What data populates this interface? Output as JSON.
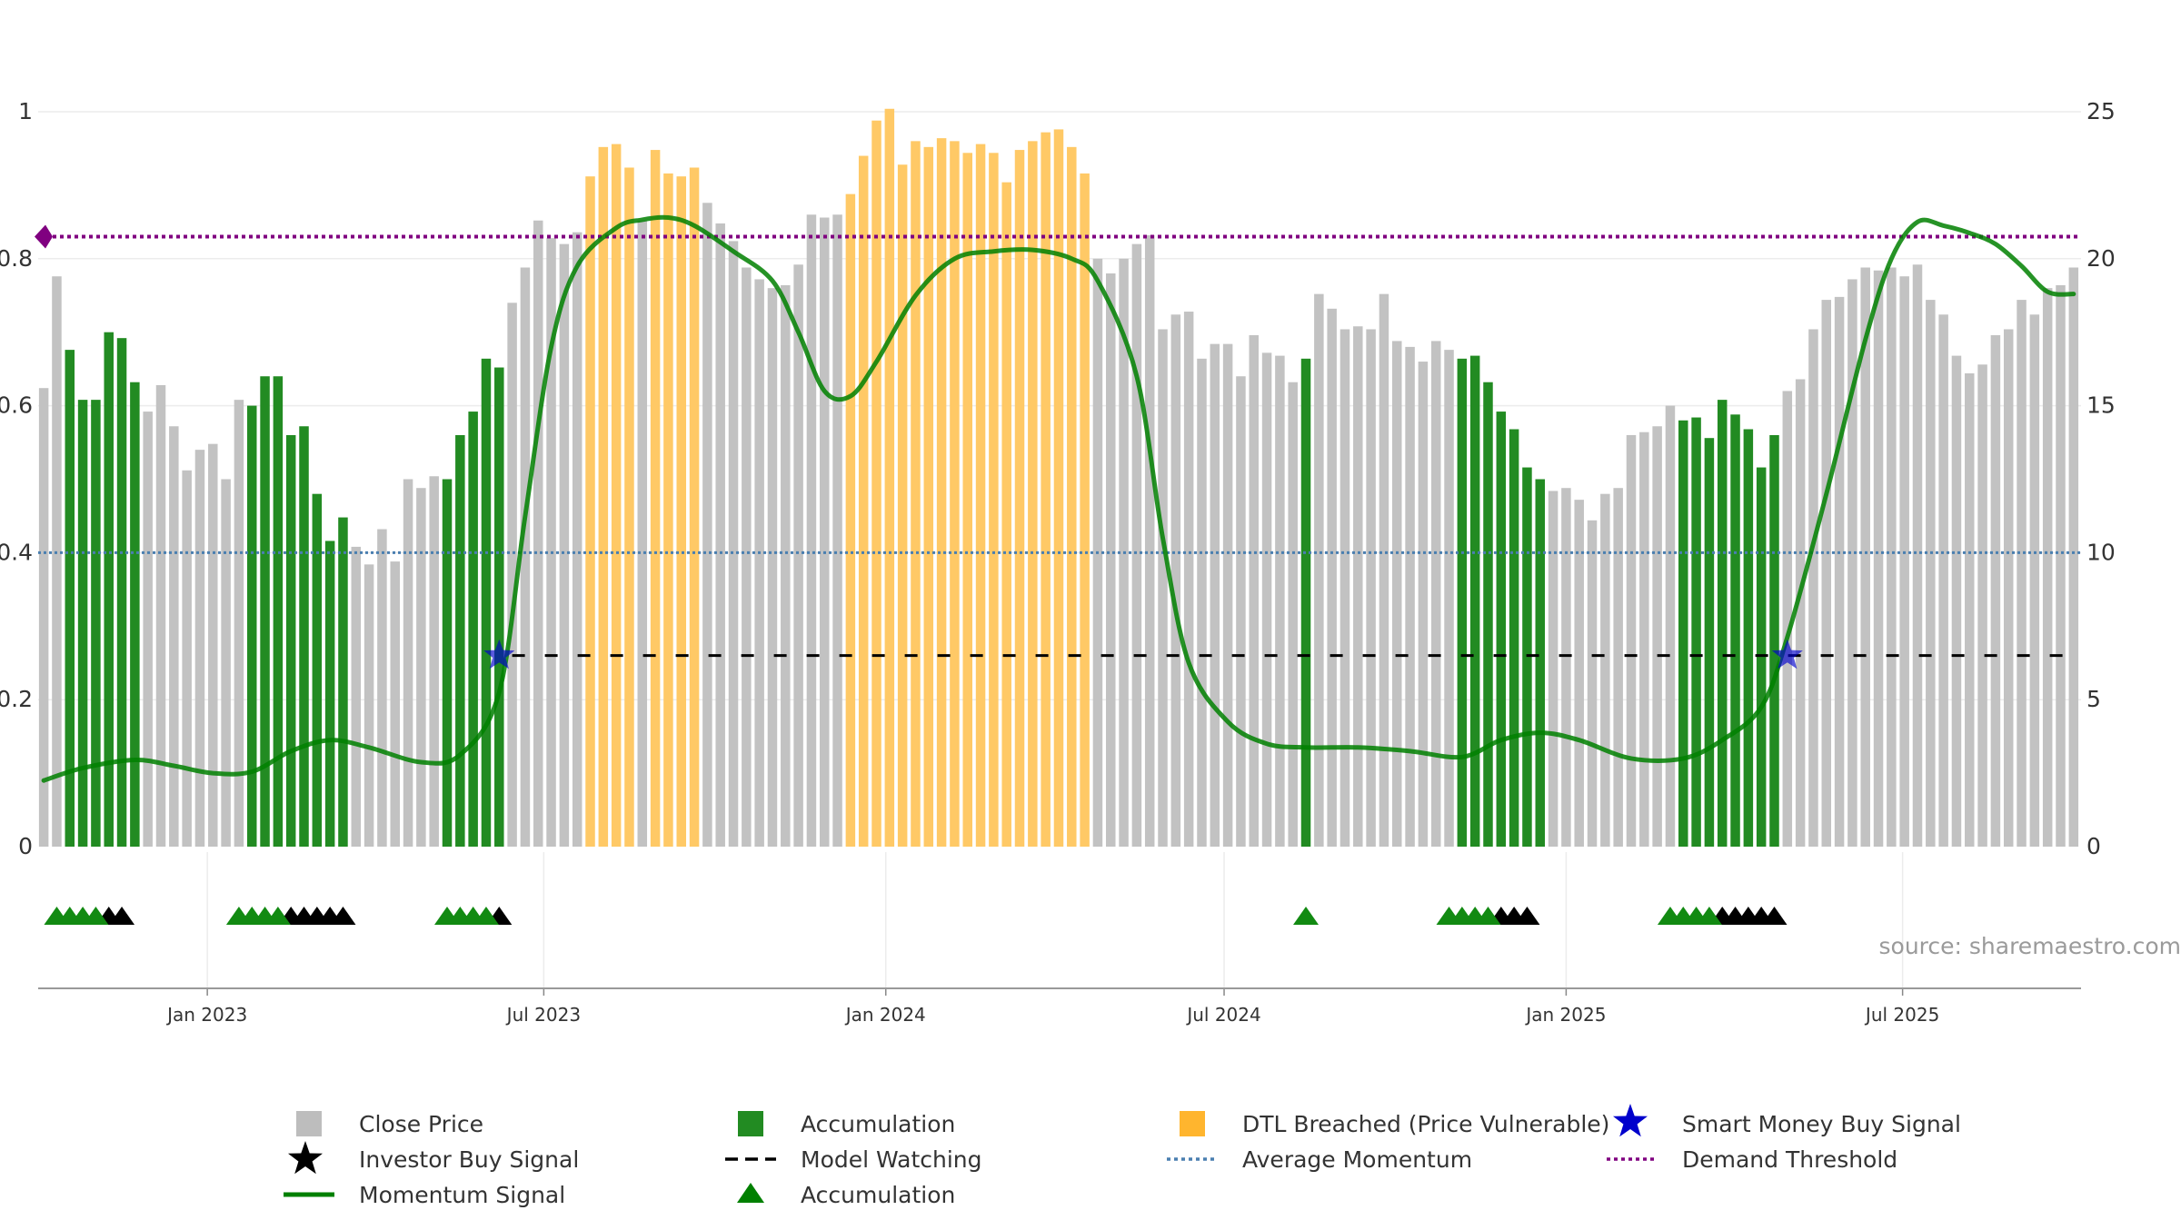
{
  "chart_data": {
    "type": "bar",
    "source_text": "source: sharemaestro.com",
    "x_ticks": [
      "Jan 2023",
      "Jul 2023",
      "Jan 2024",
      "Jul 2024",
      "Jan 2025",
      "Jul 2025"
    ],
    "y_left": {
      "ylim": [
        0,
        1
      ],
      "ticks": [
        "0",
        "0.2",
        "0.4",
        "0.6",
        "0.8",
        "1"
      ]
    },
    "y_right": {
      "ylim": [
        0,
        25
      ],
      "ticks": [
        "0",
        "5",
        "10",
        "15",
        "20",
        "25"
      ]
    },
    "grid": true,
    "colors": {
      "close_price": "#c2c2c2",
      "accumulation": "#228b22",
      "dtl_breached": "#ffc966",
      "momentum": "#008000",
      "average_momentum": "#4a7fb0",
      "demand_threshold": "#800080",
      "model_watching": "#000000",
      "smart_money": "#0000cc",
      "investor_buy": "#000000"
    },
    "bars": [
      {
        "w": "2022-10-05",
        "v": 15.6,
        "c": "close"
      },
      {
        "w": "2022-10-12",
        "v": 19.4,
        "c": "close"
      },
      {
        "w": "2022-10-19",
        "v": 16.9,
        "c": "accum"
      },
      {
        "w": "2022-10-26",
        "v": 15.2,
        "c": "accum"
      },
      {
        "w": "2022-11-02",
        "v": 15.2,
        "c": "accum"
      },
      {
        "w": "2022-11-09",
        "v": 17.5,
        "c": "accum"
      },
      {
        "w": "2022-11-16",
        "v": 17.3,
        "c": "accum"
      },
      {
        "w": "2022-11-23",
        "v": 15.8,
        "c": "accum"
      },
      {
        "w": "2022-11-30",
        "v": 14.8,
        "c": "close"
      },
      {
        "w": "2022-12-07",
        "v": 15.7,
        "c": "close"
      },
      {
        "w": "2022-12-14",
        "v": 14.3,
        "c": "close"
      },
      {
        "w": "2022-12-21",
        "v": 12.8,
        "c": "close"
      },
      {
        "w": "2022-12-28",
        "v": 13.5,
        "c": "close"
      },
      {
        "w": "2023-01-04",
        "v": 13.7,
        "c": "close"
      },
      {
        "w": "2023-01-11",
        "v": 12.5,
        "c": "close"
      },
      {
        "w": "2023-01-18",
        "v": 15.2,
        "c": "close"
      },
      {
        "w": "2023-01-25",
        "v": 15.0,
        "c": "accum"
      },
      {
        "w": "2023-02-01",
        "v": 16.0,
        "c": "accum"
      },
      {
        "w": "2023-02-08",
        "v": 16.0,
        "c": "accum"
      },
      {
        "w": "2023-02-15",
        "v": 14.0,
        "c": "accum"
      },
      {
        "w": "2023-02-22",
        "v": 14.3,
        "c": "accum"
      },
      {
        "w": "2023-03-01",
        "v": 12.0,
        "c": "accum"
      },
      {
        "w": "2023-03-08",
        "v": 10.4,
        "c": "accum"
      },
      {
        "w": "2023-03-15",
        "v": 11.2,
        "c": "accum"
      },
      {
        "w": "2023-03-22",
        "v": 10.2,
        "c": "close"
      },
      {
        "w": "2023-03-29",
        "v": 9.6,
        "c": "close"
      },
      {
        "w": "2023-04-05",
        "v": 10.8,
        "c": "close"
      },
      {
        "w": "2023-04-12",
        "v": 9.7,
        "c": "close"
      },
      {
        "w": "2023-04-19",
        "v": 12.5,
        "c": "close"
      },
      {
        "w": "2023-04-26",
        "v": 12.2,
        "c": "close"
      },
      {
        "w": "2023-05-03",
        "v": 12.6,
        "c": "close"
      },
      {
        "w": "2023-05-10",
        "v": 12.5,
        "c": "accum"
      },
      {
        "w": "2023-05-17",
        "v": 14.0,
        "c": "accum"
      },
      {
        "w": "2023-05-24",
        "v": 14.8,
        "c": "accum"
      },
      {
        "w": "2023-05-31",
        "v": 16.6,
        "c": "accum"
      },
      {
        "w": "2023-06-07",
        "v": 16.3,
        "c": "accum"
      },
      {
        "w": "2023-06-14",
        "v": 18.5,
        "c": "close"
      },
      {
        "w": "2023-06-21",
        "v": 19.7,
        "c": "close"
      },
      {
        "w": "2023-06-28",
        "v": 21.3,
        "c": "close"
      },
      {
        "w": "2023-07-05",
        "v": 20.7,
        "c": "close"
      },
      {
        "w": "2023-07-12",
        "v": 20.5,
        "c": "close"
      },
      {
        "w": "2023-07-19",
        "v": 20.9,
        "c": "close"
      },
      {
        "w": "2023-07-26",
        "v": 22.8,
        "c": "dtl"
      },
      {
        "w": "2023-08-02",
        "v": 23.8,
        "c": "dtl"
      },
      {
        "w": "2023-08-09",
        "v": 23.9,
        "c": "dtl"
      },
      {
        "w": "2023-08-16",
        "v": 23.1,
        "c": "dtl"
      },
      {
        "w": "2023-08-23",
        "v": 21.3,
        "c": "close"
      },
      {
        "w": "2023-08-30",
        "v": 23.7,
        "c": "dtl"
      },
      {
        "w": "2023-09-06",
        "v": 22.9,
        "c": "dtl"
      },
      {
        "w": "2023-09-13",
        "v": 22.8,
        "c": "dtl"
      },
      {
        "w": "2023-09-20",
        "v": 23.1,
        "c": "dtl"
      },
      {
        "w": "2023-09-27",
        "v": 21.9,
        "c": "close"
      },
      {
        "w": "2023-10-04",
        "v": 21.2,
        "c": "close"
      },
      {
        "w": "2023-10-11",
        "v": 20.6,
        "c": "close"
      },
      {
        "w": "2023-10-18",
        "v": 19.7,
        "c": "close"
      },
      {
        "w": "2023-10-25",
        "v": 19.3,
        "c": "close"
      },
      {
        "w": "2023-11-01",
        "v": 19.0,
        "c": "close"
      },
      {
        "w": "2023-11-08",
        "v": 19.1,
        "c": "close"
      },
      {
        "w": "2023-11-15",
        "v": 19.8,
        "c": "close"
      },
      {
        "w": "2023-11-22",
        "v": 21.5,
        "c": "close"
      },
      {
        "w": "2023-11-29",
        "v": 21.4,
        "c": "close"
      },
      {
        "w": "2023-12-06",
        "v": 21.5,
        "c": "close"
      },
      {
        "w": "2023-12-13",
        "v": 22.2,
        "c": "dtl"
      },
      {
        "w": "2023-12-20",
        "v": 23.5,
        "c": "dtl"
      },
      {
        "w": "2023-12-27",
        "v": 24.7,
        "c": "dtl"
      },
      {
        "w": "2024-01-03",
        "v": 25.1,
        "c": "dtl"
      },
      {
        "w": "2024-01-10",
        "v": 23.2,
        "c": "dtl"
      },
      {
        "w": "2024-01-17",
        "v": 24.0,
        "c": "dtl"
      },
      {
        "w": "2024-01-24",
        "v": 23.8,
        "c": "dtl"
      },
      {
        "w": "2024-01-31",
        "v": 24.1,
        "c": "dtl"
      },
      {
        "w": "2024-02-07",
        "v": 24.0,
        "c": "dtl"
      },
      {
        "w": "2024-02-14",
        "v": 23.6,
        "c": "dtl"
      },
      {
        "w": "2024-02-21",
        "v": 23.9,
        "c": "dtl"
      },
      {
        "w": "2024-02-28",
        "v": 23.6,
        "c": "dtl"
      },
      {
        "w": "2024-03-06",
        "v": 22.6,
        "c": "dtl"
      },
      {
        "w": "2024-03-13",
        "v": 23.7,
        "c": "dtl"
      },
      {
        "w": "2024-03-20",
        "v": 24.0,
        "c": "dtl"
      },
      {
        "w": "2024-03-27",
        "v": 24.3,
        "c": "dtl"
      },
      {
        "w": "2024-04-03",
        "v": 24.4,
        "c": "dtl"
      },
      {
        "w": "2024-04-10",
        "v": 23.8,
        "c": "dtl"
      },
      {
        "w": "2024-04-17",
        "v": 22.9,
        "c": "dtl"
      },
      {
        "w": "2024-04-24",
        "v": 20.0,
        "c": "close"
      },
      {
        "w": "2024-05-01",
        "v": 19.5,
        "c": "close"
      },
      {
        "w": "2024-05-08",
        "v": 20.0,
        "c": "close"
      },
      {
        "w": "2024-05-15",
        "v": 20.5,
        "c": "close"
      },
      {
        "w": "2024-05-22",
        "v": 20.8,
        "c": "close"
      },
      {
        "w": "2024-05-29",
        "v": 17.6,
        "c": "close"
      },
      {
        "w": "2024-06-05",
        "v": 18.1,
        "c": "close"
      },
      {
        "w": "2024-06-12",
        "v": 18.2,
        "c": "close"
      },
      {
        "w": "2024-06-19",
        "v": 16.6,
        "c": "close"
      },
      {
        "w": "2024-06-26",
        "v": 17.1,
        "c": "close"
      },
      {
        "w": "2024-07-03",
        "v": 17.1,
        "c": "close"
      },
      {
        "w": "2024-07-10",
        "v": 16.0,
        "c": "close"
      },
      {
        "w": "2024-07-17",
        "v": 17.4,
        "c": "close"
      },
      {
        "w": "2024-07-24",
        "v": 16.8,
        "c": "close"
      },
      {
        "w": "2024-07-31",
        "v": 16.7,
        "c": "close"
      },
      {
        "w": "2024-08-07",
        "v": 15.8,
        "c": "close"
      },
      {
        "w": "2024-08-14",
        "v": 16.6,
        "c": "accum"
      },
      {
        "w": "2024-08-21",
        "v": 18.8,
        "c": "close"
      },
      {
        "w": "2024-08-28",
        "v": 18.3,
        "c": "close"
      },
      {
        "w": "2024-09-04",
        "v": 17.6,
        "c": "close"
      },
      {
        "w": "2024-09-11",
        "v": 17.7,
        "c": "close"
      },
      {
        "w": "2024-09-18",
        "v": 17.6,
        "c": "close"
      },
      {
        "w": "2024-09-25",
        "v": 18.8,
        "c": "close"
      },
      {
        "w": "2024-10-02",
        "v": 17.2,
        "c": "close"
      },
      {
        "w": "2024-10-09",
        "v": 17.0,
        "c": "close"
      },
      {
        "w": "2024-10-16",
        "v": 16.5,
        "c": "close"
      },
      {
        "w": "2024-10-23",
        "v": 17.2,
        "c": "close"
      },
      {
        "w": "2024-10-30",
        "v": 16.9,
        "c": "close"
      },
      {
        "w": "2024-11-06",
        "v": 16.6,
        "c": "accum"
      },
      {
        "w": "2024-11-13",
        "v": 16.7,
        "c": "accum"
      },
      {
        "w": "2024-11-20",
        "v": 15.8,
        "c": "accum"
      },
      {
        "w": "2024-11-27",
        "v": 14.8,
        "c": "accum"
      },
      {
        "w": "2024-12-04",
        "v": 14.2,
        "c": "accum"
      },
      {
        "w": "2024-12-11",
        "v": 12.9,
        "c": "accum"
      },
      {
        "w": "2024-12-18",
        "v": 12.5,
        "c": "accum"
      },
      {
        "w": "2024-12-25",
        "v": 12.1,
        "c": "close"
      },
      {
        "w": "2025-01-01",
        "v": 12.2,
        "c": "close"
      },
      {
        "w": "2025-01-08",
        "v": 11.8,
        "c": "close"
      },
      {
        "w": "2025-01-15",
        "v": 11.1,
        "c": "close"
      },
      {
        "w": "2025-01-22",
        "v": 12.0,
        "c": "close"
      },
      {
        "w": "2025-01-29",
        "v": 12.2,
        "c": "close"
      },
      {
        "w": "2025-02-05",
        "v": 14.0,
        "c": "close"
      },
      {
        "w": "2025-02-12",
        "v": 14.1,
        "c": "close"
      },
      {
        "w": "2025-02-19",
        "v": 14.3,
        "c": "close"
      },
      {
        "w": "2025-02-26",
        "v": 15.0,
        "c": "close"
      },
      {
        "w": "2025-03-05",
        "v": 14.5,
        "c": "accum"
      },
      {
        "w": "2025-03-12",
        "v": 14.6,
        "c": "accum"
      },
      {
        "w": "2025-03-19",
        "v": 13.9,
        "c": "accum"
      },
      {
        "w": "2025-03-26",
        "v": 15.2,
        "c": "accum"
      },
      {
        "w": "2025-04-02",
        "v": 14.7,
        "c": "accum"
      },
      {
        "w": "2025-04-09",
        "v": 14.2,
        "c": "accum"
      },
      {
        "w": "2025-04-16",
        "v": 12.9,
        "c": "accum"
      },
      {
        "w": "2025-04-23",
        "v": 14.0,
        "c": "accum"
      },
      {
        "w": "2025-04-30",
        "v": 15.5,
        "c": "close"
      },
      {
        "w": "2025-05-07",
        "v": 15.9,
        "c": "close"
      },
      {
        "w": "2025-05-14",
        "v": 17.6,
        "c": "close"
      },
      {
        "w": "2025-05-21",
        "v": 18.6,
        "c": "close"
      },
      {
        "w": "2025-05-28",
        "v": 18.7,
        "c": "close"
      },
      {
        "w": "2025-06-04",
        "v": 19.3,
        "c": "close"
      },
      {
        "w": "2025-06-11",
        "v": 19.7,
        "c": "close"
      },
      {
        "w": "2025-06-18",
        "v": 19.6,
        "c": "close"
      },
      {
        "w": "2025-06-25",
        "v": 19.7,
        "c": "close"
      },
      {
        "w": "2025-07-02",
        "v": 19.4,
        "c": "close"
      },
      {
        "w": "2025-07-09",
        "v": 19.8,
        "c": "close"
      },
      {
        "w": "2025-07-16",
        "v": 18.6,
        "c": "close"
      },
      {
        "w": "2025-07-23",
        "v": 18.1,
        "c": "close"
      },
      {
        "w": "2025-07-30",
        "v": 16.7,
        "c": "close"
      },
      {
        "w": "2025-08-06",
        "v": 16.1,
        "c": "close"
      },
      {
        "w": "2025-08-13",
        "v": 16.4,
        "c": "close"
      },
      {
        "w": "2025-08-20",
        "v": 17.4,
        "c": "close"
      },
      {
        "w": "2025-08-27",
        "v": 17.6,
        "c": "close"
      },
      {
        "w": "2025-09-03",
        "v": 18.6,
        "c": "close"
      },
      {
        "w": "2025-09-10",
        "v": 18.1,
        "c": "close"
      },
      {
        "w": "2025-09-17",
        "v": 19.0,
        "c": "close"
      },
      {
        "w": "2025-09-24",
        "v": 19.1,
        "c": "close"
      },
      {
        "w": "2025-10-01",
        "v": 19.7,
        "c": "close"
      }
    ],
    "momentum": [
      [
        "2022-10-05",
        0.09
      ],
      [
        "2022-10-26",
        0.107
      ],
      [
        "2022-11-23",
        0.118
      ],
      [
        "2022-12-14",
        0.11
      ],
      [
        "2023-01-04",
        0.1
      ],
      [
        "2023-01-25",
        0.102
      ],
      [
        "2023-02-15",
        0.13
      ],
      [
        "2023-03-08",
        0.145
      ],
      [
        "2023-03-29",
        0.135
      ],
      [
        "2023-04-26",
        0.115
      ],
      [
        "2023-05-17",
        0.125
      ],
      [
        "2023-06-07",
        0.21
      ],
      [
        "2023-06-21",
        0.45
      ],
      [
        "2023-07-05",
        0.68
      ],
      [
        "2023-07-19",
        0.79
      ],
      [
        "2023-08-09",
        0.842
      ],
      [
        "2023-08-23",
        0.853
      ],
      [
        "2023-09-06",
        0.856
      ],
      [
        "2023-09-20",
        0.845
      ],
      [
        "2023-10-11",
        0.81
      ],
      [
        "2023-11-01",
        0.77
      ],
      [
        "2023-11-15",
        0.7
      ],
      [
        "2023-11-29",
        0.62
      ],
      [
        "2023-12-13",
        0.613
      ],
      [
        "2023-12-27",
        0.66
      ],
      [
        "2024-01-17",
        0.75
      ],
      [
        "2024-02-07",
        0.8
      ],
      [
        "2024-02-28",
        0.81
      ],
      [
        "2024-03-20",
        0.812
      ],
      [
        "2024-04-10",
        0.8
      ],
      [
        "2024-04-24",
        0.77
      ],
      [
        "2024-05-15",
        0.64
      ],
      [
        "2024-05-29",
        0.42
      ],
      [
        "2024-06-12",
        0.25
      ],
      [
        "2024-07-03",
        0.17
      ],
      [
        "2024-07-24",
        0.14
      ],
      [
        "2024-08-14",
        0.135
      ],
      [
        "2024-09-11",
        0.135
      ],
      [
        "2024-10-09",
        0.13
      ],
      [
        "2024-11-06",
        0.122
      ],
      [
        "2024-11-27",
        0.145
      ],
      [
        "2024-12-18",
        0.155
      ],
      [
        "2025-01-08",
        0.145
      ],
      [
        "2025-02-05",
        0.12
      ],
      [
        "2025-03-05",
        0.12
      ],
      [
        "2025-03-26",
        0.145
      ],
      [
        "2025-04-16",
        0.19
      ],
      [
        "2025-04-30",
        0.285
      ],
      [
        "2025-05-21",
        0.48
      ],
      [
        "2025-06-11",
        0.69
      ],
      [
        "2025-06-25",
        0.8
      ],
      [
        "2025-07-09",
        0.85
      ],
      [
        "2025-07-23",
        0.845
      ],
      [
        "2025-08-06",
        0.835
      ],
      [
        "2025-08-20",
        0.82
      ],
      [
        "2025-09-03",
        0.79
      ],
      [
        "2025-09-17",
        0.755
      ],
      [
        "2025-10-01",
        0.752
      ]
    ],
    "average_momentum": 0.4,
    "demand_threshold": 0.83,
    "model_watching": {
      "level": 0.26,
      "from": "2023-06-14",
      "to": "2025-10-01"
    },
    "smart_money_signals": [
      {
        "date": "2023-06-07",
        "value": 0.26
      },
      {
        "date": "2025-04-30",
        "value": 0.26
      }
    ],
    "accumulation_markers": [
      "2022-10-12",
      "2022-10-19",
      "2022-10-26",
      "2022-11-02",
      "2023-01-18",
      "2023-01-25",
      "2023-02-01",
      "2023-02-08",
      "2023-05-10",
      "2023-05-17",
      "2023-05-24",
      "2023-05-31",
      "2024-08-14",
      "2024-10-30",
      "2024-11-06",
      "2024-11-13",
      "2024-11-20",
      "2025-02-26",
      "2025-03-05",
      "2025-03-12",
      "2025-03-19"
    ],
    "investor_buy_markers": [
      "2022-11-09",
      "2022-11-16",
      "2023-02-15",
      "2023-02-22",
      "2023-03-01",
      "2023-03-08",
      "2023-03-15",
      "2023-06-07",
      "2024-11-27",
      "2024-12-04",
      "2024-12-11",
      "2025-03-26",
      "2025-04-02",
      "2025-04-09",
      "2025-04-16",
      "2025-04-23"
    ],
    "legend": [
      {
        "label": "Close Price",
        "symbol": "square",
        "color": "#bdbdbd"
      },
      {
        "label": "Accumulation",
        "symbol": "square",
        "color": "#228b22"
      },
      {
        "label": "DTL Breached (Price Vulnerable)",
        "symbol": "square",
        "color": "#ffb52e"
      },
      {
        "label": "Smart Money Buy Signal",
        "symbol": "star",
        "color": "#0000cc"
      },
      {
        "label": "Investor Buy Signal",
        "symbol": "star",
        "color": "#000000"
      },
      {
        "label": "Model Watching",
        "symbol": "dash",
        "color": "#000000"
      },
      {
        "label": "Average Momentum",
        "symbol": "dot",
        "color": "#4a7fb0"
      },
      {
        "label": "Demand Threshold",
        "symbol": "dot",
        "color": "#800080"
      },
      {
        "label": "Momentum Signal",
        "symbol": "line",
        "color": "#008000"
      },
      {
        "label": "Accumulation",
        "symbol": "triangle",
        "color": "#008000"
      }
    ]
  }
}
